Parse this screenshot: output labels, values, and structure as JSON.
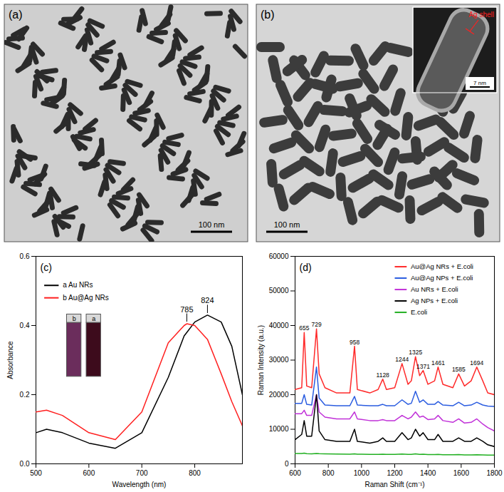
{
  "images": [
    {
      "panel": "(a)",
      "scale_bar": "100 nm"
    },
    {
      "panel": "(b)",
      "scale_bar": "100 nm",
      "inset": {
        "label": "Ag shell",
        "scale_bar": "7 nm"
      }
    }
  ],
  "chart_data": [
    {
      "type": "line",
      "panel": "(c)",
      "x_label": "Wavelength (nm)",
      "y_label": "Absorbance",
      "x": [
        500,
        520,
        550,
        600,
        650,
        700,
        750,
        780,
        785,
        800,
        824,
        850,
        870,
        890
      ],
      "series": [
        {
          "name": "a Au NRs",
          "color": "#000000",
          "values": [
            0.09,
            0.1,
            0.09,
            0.06,
            0.045,
            0.09,
            0.25,
            0.37,
            0.38,
            0.41,
            0.43,
            0.41,
            0.34,
            0.2
          ]
        },
        {
          "name": "b Au@Ag NRs",
          "color": "#ff2020",
          "values": [
            0.15,
            0.155,
            0.14,
            0.09,
            0.07,
            0.15,
            0.35,
            0.4,
            0.405,
            0.4,
            0.36,
            0.26,
            0.18,
            0.11
          ]
        }
      ],
      "xlim": [
        500,
        890
      ],
      "xticks": [
        500,
        600,
        700,
        800
      ],
      "ylim": [
        0,
        0.6
      ],
      "yticks": [
        {
          "value": 0,
          "label": "0.0"
        },
        {
          "value": 0.2,
          "label": "0.2"
        },
        {
          "value": 0.4,
          "label": "0.4"
        },
        {
          "value": 0.6,
          "label": "0.6"
        }
      ],
      "legend": "top-left",
      "annotations": [
        {
          "text": "785",
          "x": 785,
          "y": 0.405
        },
        {
          "text": "824",
          "x": 824,
          "y": 0.43
        }
      ],
      "inset": {
        "labels": [
          "b",
          "a"
        ],
        "colors": [
          "#6b2d5c",
          "#3d0b1c"
        ]
      }
    },
    {
      "type": "line",
      "panel": "(d)",
      "x_label": "Raman Shift (cm⁻¹)",
      "y_label": "Raman Intensity (a.u.)",
      "x": [
        600,
        640,
        655,
        670,
        700,
        729,
        745,
        780,
        850,
        930,
        958,
        975,
        1050,
        1100,
        1128,
        1150,
        1200,
        1244,
        1280,
        1300,
        1325,
        1350,
        1371,
        1400,
        1440,
        1461,
        1490,
        1550,
        1585,
        1620,
        1660,
        1694,
        1730,
        1760,
        1800
      ],
      "series": [
        {
          "name": "Au@Ag NRs + E.coli",
          "color": "#ff2a2a",
          "values": [
            21500,
            22000,
            38000,
            22500,
            22000,
            39000,
            26000,
            22000,
            20500,
            20500,
            34000,
            21500,
            20500,
            21500,
            24500,
            21500,
            22000,
            29000,
            23000,
            24000,
            31000,
            25500,
            27000,
            23000,
            24000,
            28000,
            23000,
            22000,
            26000,
            22500,
            24000,
            28000,
            24000,
            20500,
            20000
          ]
        },
        {
          "name": "Au@Ag NPs + E.coli",
          "color": "#2a5ce0",
          "values": [
            17500,
            17500,
            20000,
            17200,
            17000,
            28000,
            19000,
            17000,
            16800,
            16800,
            19500,
            17000,
            16800,
            16800,
            17200,
            16800,
            16800,
            18500,
            17200,
            17500,
            21000,
            17800,
            18500,
            17200,
            17200,
            18000,
            17000,
            16800,
            17800,
            16800,
            17000,
            17800,
            17000,
            16700,
            16600
          ]
        },
        {
          "name": "Au NRs + E.coli",
          "color": "#c030d8",
          "values": [
            14500,
            14500,
            15500,
            14000,
            14000,
            20000,
            15000,
            13500,
            13000,
            13000,
            15000,
            13000,
            12500,
            12500,
            12800,
            12500,
            12500,
            14000,
            13000,
            13500,
            15000,
            13500,
            13800,
            12800,
            13000,
            14000,
            12500,
            12000,
            13000,
            11800,
            12000,
            13000,
            11500,
            10500,
            9500
          ]
        },
        {
          "name": "Ag NPs + E.coli",
          "color": "#000000",
          "values": [
            7000,
            8500,
            12500,
            8000,
            8000,
            20000,
            9500,
            7000,
            6500,
            6500,
            10000,
            6500,
            6000,
            6500,
            7500,
            6500,
            6500,
            9000,
            7000,
            7500,
            10000,
            8000,
            9000,
            7000,
            7000,
            8500,
            6500,
            6500,
            7500,
            6500,
            6500,
            7500,
            6500,
            5500,
            5000
          ]
        },
        {
          "name": "E.coli",
          "color": "#22b022",
          "values": [
            3000,
            3000,
            3100,
            2950,
            2900,
            3000,
            2950,
            2900,
            2850,
            2800,
            2900,
            2800,
            2750,
            2750,
            2800,
            2750,
            2750,
            2850,
            2750,
            2750,
            2900,
            2750,
            2800,
            2700,
            2700,
            2750,
            2650,
            2650,
            2700,
            2600,
            2600,
            2650,
            2600,
            2550,
            2500
          ]
        }
      ],
      "xlim": [
        600,
        1800
      ],
      "xticks": [
        600,
        800,
        1000,
        1200,
        1400,
        1600,
        1800
      ],
      "ylim": [
        0,
        60000
      ],
      "yticks": [
        0,
        10000,
        20000,
        30000,
        40000,
        50000,
        60000
      ],
      "legend": "top-right",
      "annotations": [
        {
          "text": "655",
          "x": 655,
          "y": 38000
        },
        {
          "text": "729",
          "x": 729,
          "y": 39000
        },
        {
          "text": "958",
          "x": 958,
          "y": 34000
        },
        {
          "text": "1128",
          "x": 1128,
          "y": 24500
        },
        {
          "text": "1244",
          "x": 1244,
          "y": 29000
        },
        {
          "text": "1325",
          "x": 1325,
          "y": 31000
        },
        {
          "text": "1371",
          "x": 1371,
          "y": 27000
        },
        {
          "text": "1461",
          "x": 1461,
          "y": 28000
        },
        {
          "text": "1585",
          "x": 1585,
          "y": 26000
        },
        {
          "text": "1694",
          "x": 1694,
          "y": 28000
        }
      ]
    }
  ]
}
